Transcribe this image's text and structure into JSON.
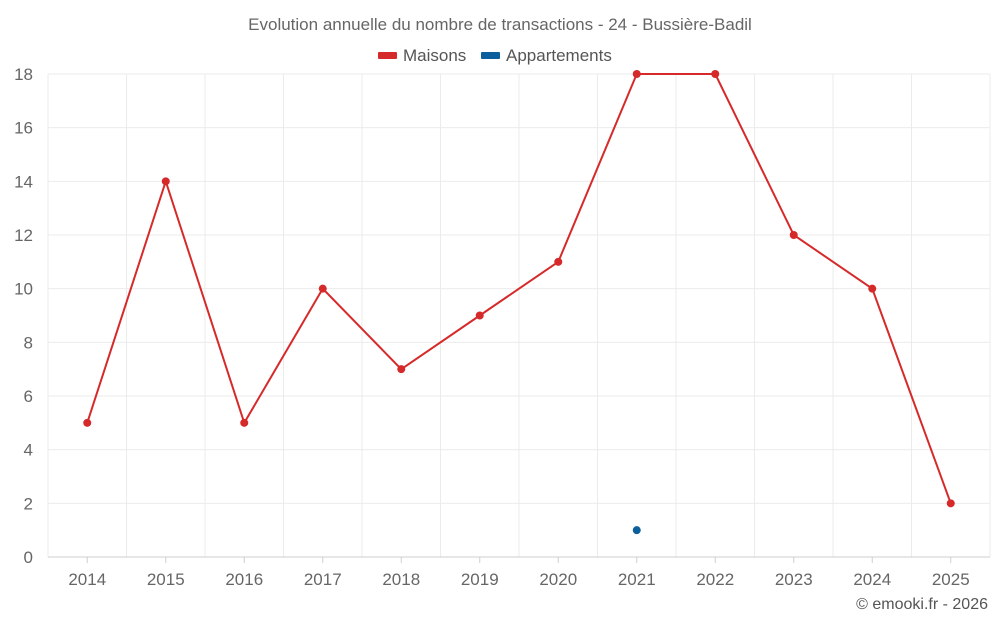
{
  "chart_data": {
    "type": "line",
    "title": "Evolution annuelle du nombre de transactions - 24 - Bussière-Badil",
    "xlabel": "",
    "ylabel": "",
    "categories": [
      "2014",
      "2015",
      "2016",
      "2017",
      "2018",
      "2019",
      "2020",
      "2021",
      "2022",
      "2023",
      "2024",
      "2025"
    ],
    "ylim": [
      0,
      18
    ],
    "yticks": [
      "0",
      "2",
      "4",
      "6",
      "8",
      "10",
      "12",
      "14",
      "16",
      "18"
    ],
    "grid": true,
    "legend_position": "top-center",
    "series": [
      {
        "name": "Maisons",
        "color": "#d62a2a",
        "values": [
          5,
          14,
          5,
          10,
          7,
          9,
          11,
          18,
          18,
          12,
          10,
          2
        ]
      },
      {
        "name": "Appartements",
        "color": "#0a5f9c",
        "values": [
          null,
          null,
          null,
          null,
          null,
          null,
          null,
          1,
          null,
          null,
          null,
          null
        ]
      }
    ]
  },
  "credit": "© emooki.fr - 2026"
}
